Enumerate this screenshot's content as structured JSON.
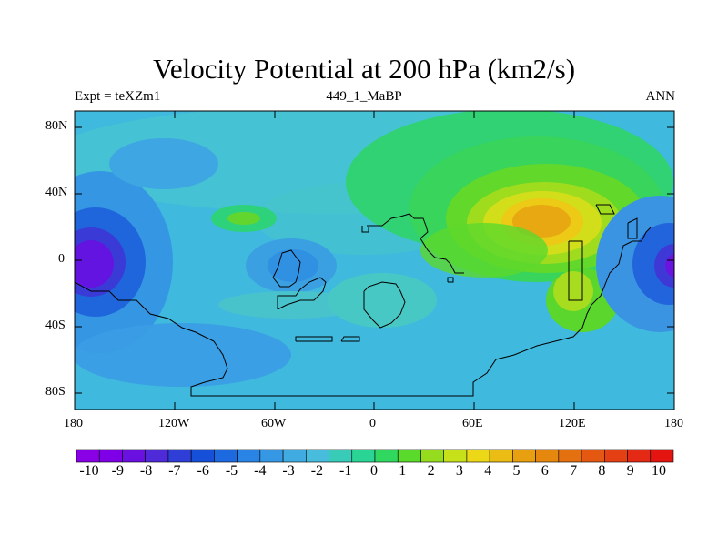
{
  "title": "Velocity Potential at 200 hPa (km2/s)",
  "left_string": "Expt = teXZm1",
  "center_string": "449_1_MaBP",
  "right_string": "ANN",
  "lat_labels": [
    "80N",
    "40N",
    "0",
    "40S",
    "80S"
  ],
  "lon_labels": [
    "180",
    "120W",
    "60W",
    "0",
    "60E",
    "120E",
    "180"
  ],
  "colorbar": {
    "labels": [
      "-10",
      "-9",
      "-8",
      "-7",
      "-6",
      "-5",
      "-4",
      "-3",
      "-2",
      "-1",
      "0",
      "1",
      "2",
      "3",
      "4",
      "5",
      "6",
      "7",
      "8",
      "9",
      "10"
    ],
    "colors": [
      "#8a00e6",
      "#7f00e6",
      "#6a10e0",
      "#4f2ad8",
      "#2f3ed6",
      "#1650d8",
      "#1d6ae0",
      "#2a84e6",
      "#3698e4",
      "#3fabe0",
      "#48bcdc",
      "#38ccb8",
      "#2ad494",
      "#30d860",
      "#5ada2a",
      "#96dc1e",
      "#c6e01a",
      "#ecd816",
      "#eabc14",
      "#e8a010",
      "#e6880e",
      "#e47010",
      "#e45812",
      "#e44014",
      "#e42a14",
      "#e41410"
    ]
  }
}
